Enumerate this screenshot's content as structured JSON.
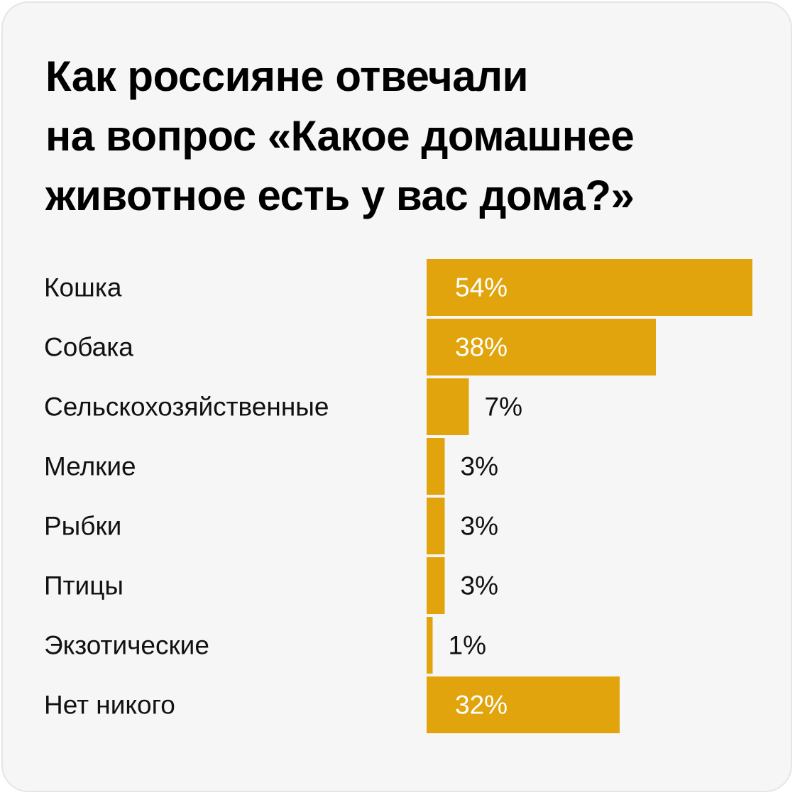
{
  "title_lines": [
    "Как россияне отвечали",
    "на вопрос «Какое домашнее",
    "животное есть у вас дома?»"
  ],
  "colors": {
    "bar": "#e2a40c",
    "label_inside": "#ffffff",
    "label_outside": "#111111",
    "background": "#f6f6f6"
  },
  "chart_data": {
    "type": "bar",
    "orientation": "horizontal",
    "title": "Как россияне отвечали на вопрос «Какое домашнее животное есть у вас дома?»",
    "categories": [
      "Кошка",
      "Собака",
      "Сельскохозяйственные",
      "Мелкие",
      "Рыбки",
      "Птицы",
      "Экзотические",
      "Нет никого"
    ],
    "values": [
      54,
      38,
      7,
      3,
      3,
      3,
      1,
      32
    ],
    "value_labels": [
      "54%",
      "38%",
      "7%",
      "3%",
      "3%",
      "3%",
      "1%",
      "32%"
    ],
    "unit": "%",
    "xlim": [
      0,
      100
    ],
    "grid": false,
    "legend": "none"
  }
}
